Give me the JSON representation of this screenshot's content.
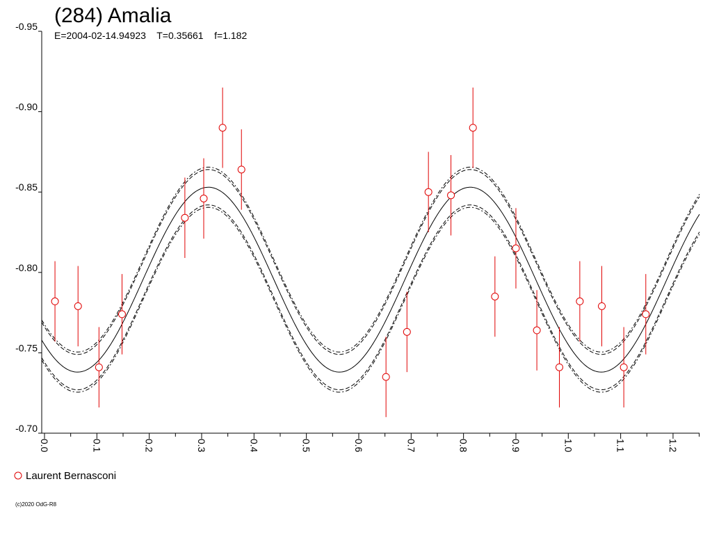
{
  "chart_data": {
    "type": "scatter",
    "title": "(284) Amalia",
    "subtitle": "E=2004-02-14.94923    T=0.35661    f=1.182",
    "xlabel": "",
    "ylabel": "",
    "xlim": [
      0.0,
      1.25
    ],
    "ylim": [
      -0.95,
      -0.7
    ],
    "y_inverted": true,
    "x_ticks": [
      0.0,
      0.1,
      0.2,
      0.3,
      0.4,
      0.5,
      0.6,
      0.7,
      0.8,
      0.9,
      1.0,
      1.1,
      1.2
    ],
    "x_tick_labels": [
      "0.0",
      "0.1",
      "0.2",
      "0.3",
      "0.4",
      "0.5",
      "0.6",
      "0.7",
      "0.8",
      "0.9",
      "1.0",
      "1.1",
      "1.2"
    ],
    "y_ticks": [
      -0.95,
      -0.9,
      -0.85,
      -0.8,
      -0.75,
      -0.7
    ],
    "y_tick_labels": [
      "-0.95",
      "-0.90",
      "-0.85",
      "-0.80",
      "-0.75",
      "-0.70"
    ],
    "grid": false,
    "legend_position": "bottom-left",
    "series": [
      {
        "name": "Laurent Bernasconi",
        "color": "#e00000",
        "marker": "open-circle",
        "points": [
          {
            "x": 0.02,
            "y": -0.782,
            "err": 0.025
          },
          {
            "x": 0.064,
            "y": -0.779,
            "err": 0.025
          },
          {
            "x": 0.104,
            "y": -0.741,
            "err": 0.025
          },
          {
            "x": 0.148,
            "y": -0.774,
            "err": 0.025
          },
          {
            "x": 0.268,
            "y": -0.834,
            "err": 0.025
          },
          {
            "x": 0.304,
            "y": -0.846,
            "err": 0.025
          },
          {
            "x": 0.34,
            "y": -0.89,
            "err": 0.025
          },
          {
            "x": 0.376,
            "y": -0.864,
            "err": 0.025
          },
          {
            "x": 0.652,
            "y": -0.735,
            "err": 0.025
          },
          {
            "x": 0.692,
            "y": -0.763,
            "err": 0.025
          },
          {
            "x": 0.733,
            "y": -0.85,
            "err": 0.025
          },
          {
            "x": 0.776,
            "y": -0.848,
            "err": 0.025
          },
          {
            "x": 0.818,
            "y": -0.89,
            "err": 0.025
          },
          {
            "x": 0.86,
            "y": -0.785,
            "err": 0.025
          },
          {
            "x": 0.9,
            "y": -0.815,
            "err": 0.025
          },
          {
            "x": 0.94,
            "y": -0.764,
            "err": 0.025
          },
          {
            "x": 0.983,
            "y": -0.741,
            "err": 0.025
          },
          {
            "x": 1.022,
            "y": -0.782,
            "err": 0.025
          },
          {
            "x": 1.064,
            "y": -0.779,
            "err": 0.025
          },
          {
            "x": 1.106,
            "y": -0.741,
            "err": 0.025
          },
          {
            "x": 1.148,
            "y": -0.774,
            "err": 0.025
          }
        ]
      }
    ],
    "fit_curve": {
      "mean": -0.7955,
      "amplitude": 0.0575,
      "peak_phase": 0.313,
      "harmonics_per_cycle": 2,
      "envelope_offsets": [
        0.011,
        0.0125
      ],
      "color": "#000000"
    },
    "credit": "(c)2020 OdG-R8"
  }
}
